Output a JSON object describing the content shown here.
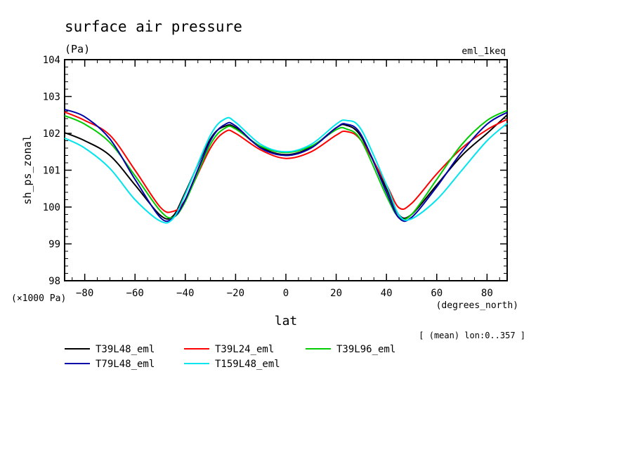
{
  "chart_data": {
    "type": "line",
    "title": "surface air pressure",
    "units": "(Pa)",
    "experiment": "eml_1keq",
    "xlabel": "lat",
    "xunits": "(degrees_north)",
    "ylabel": "sh_ps_zonal",
    "yscale_note": "(×1000 Pa)",
    "subset_note": "[ (mean) lon:0..357 ]",
    "xlim": [
      -88,
      88
    ],
    "ylim": [
      98,
      104
    ],
    "xticks": [
      -80,
      -60,
      -40,
      -20,
      0,
      20,
      40,
      60,
      80
    ],
    "xtick_labels": [
      "−80",
      "−60",
      "−40",
      "−20",
      "0",
      "20",
      "40",
      "60",
      "80"
    ],
    "yticks": [
      98,
      99,
      100,
      101,
      102,
      103,
      104
    ],
    "ytick_labels": [
      "98",
      "99",
      "100",
      "101",
      "102",
      "103",
      "104"
    ],
    "x": [
      -88,
      -80,
      -70,
      -60,
      -50,
      -45,
      -40,
      -30,
      -24,
      -20,
      -10,
      0,
      10,
      20,
      24,
      30,
      40,
      45,
      50,
      60,
      70,
      80,
      88
    ],
    "series": [
      {
        "name": "T39L48_eml",
        "color": "#000000",
        "values": [
          102.02,
          101.8,
          101.4,
          100.6,
          99.78,
          99.75,
          100.4,
          101.85,
          102.2,
          102.15,
          101.62,
          101.42,
          101.62,
          102.15,
          102.22,
          101.9,
          100.5,
          99.78,
          99.8,
          100.6,
          101.4,
          102.0,
          102.5
        ]
      },
      {
        "name": "T39L24_eml",
        "color": "#ff0000",
        "values": [
          102.58,
          102.35,
          101.95,
          101.0,
          100.0,
          99.88,
          100.2,
          101.6,
          102.05,
          102.0,
          101.55,
          101.32,
          101.5,
          101.95,
          102.05,
          101.8,
          100.6,
          99.98,
          100.1,
          100.9,
          101.6,
          102.1,
          102.38
        ]
      },
      {
        "name": "T39L96_eml",
        "color": "#00cc00",
        "values": [
          102.48,
          102.25,
          101.75,
          100.85,
          99.9,
          99.72,
          100.15,
          101.7,
          102.15,
          102.12,
          101.65,
          101.48,
          101.65,
          102.1,
          102.12,
          101.8,
          100.3,
          99.72,
          99.8,
          100.75,
          101.7,
          102.35,
          102.62
        ]
      },
      {
        "name": "T79L48_eml",
        "color": "#0000aa",
        "values": [
          102.65,
          102.45,
          101.85,
          100.75,
          99.72,
          99.7,
          100.2,
          101.8,
          102.25,
          102.2,
          101.6,
          101.4,
          101.6,
          102.15,
          102.25,
          101.95,
          100.4,
          99.7,
          99.72,
          100.55,
          101.5,
          102.25,
          102.57
        ]
      },
      {
        "name": "T159L48_eml",
        "color": "#00e5ee",
        "values": [
          101.87,
          101.6,
          101.05,
          100.2,
          99.62,
          99.68,
          100.35,
          101.95,
          102.4,
          102.3,
          101.7,
          101.5,
          101.7,
          102.25,
          102.35,
          102.1,
          100.6,
          99.78,
          99.68,
          100.2,
          101.0,
          101.8,
          102.27
        ]
      }
    ],
    "legend_location": "below-left"
  }
}
